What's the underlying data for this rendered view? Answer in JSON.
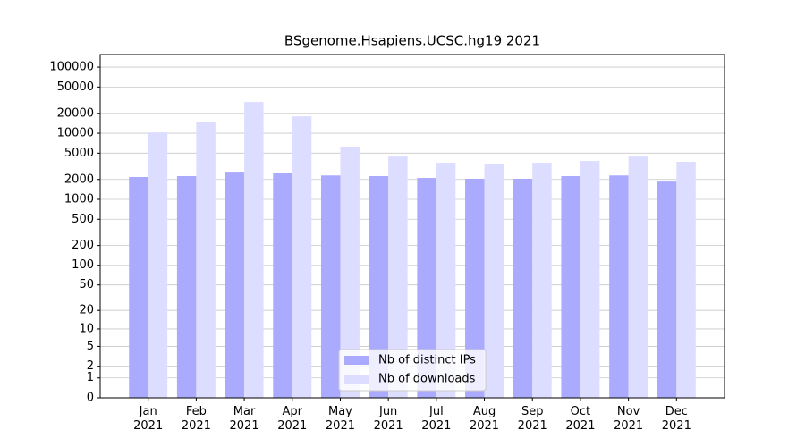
{
  "chart_data": {
    "type": "bar",
    "title": "BSgenome.Hsapiens.UCSC.hg19 2021",
    "categories": [
      "Jan\n2021",
      "Feb\n2021",
      "Mar\n2021",
      "Apr\n2021",
      "May\n2021",
      "Jun\n2021",
      "Jul\n2021",
      "Aug\n2021",
      "Sep\n2021",
      "Oct\n2021",
      "Nov\n2021",
      "Dec\n2021"
    ],
    "series": [
      {
        "name": "Nb of distinct IPs",
        "color": "#aaaaff",
        "values": [
          2180,
          2250,
          2620,
          2550,
          2300,
          2250,
          2110,
          2050,
          2050,
          2250,
          2300,
          1860
        ]
      },
      {
        "name": "Nb of downloads",
        "color": "#ddddff",
        "values": [
          10300,
          15000,
          29700,
          18000,
          6300,
          4450,
          3580,
          3370,
          3580,
          3810,
          4450,
          3700
        ]
      }
    ],
    "yscale": "symlog",
    "ylim": [
      0,
      155000
    ],
    "yticks": [
      0,
      1,
      2,
      5,
      10,
      20,
      50,
      100,
      200,
      500,
      1000,
      2000,
      5000,
      10000,
      20000,
      50000,
      100000
    ],
    "grid": true,
    "legend": "lower center"
  }
}
